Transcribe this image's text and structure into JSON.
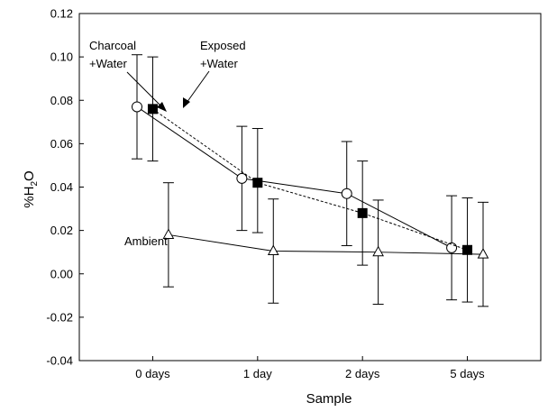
{
  "chart_data": {
    "type": "line",
    "xlabel": "Sample",
    "ylabel": {
      "main": "%H",
      "sub": "2",
      "tail": "O"
    },
    "categories": [
      "0 days",
      "1 day",
      "2 days",
      "5 days"
    ],
    "ylim": [
      -0.04,
      0.12
    ],
    "yticks": [
      -0.04,
      -0.02,
      0.0,
      0.02,
      0.04,
      0.06,
      0.08,
      0.1,
      0.12
    ],
    "ytick_labels": [
      "-0.04",
      "-0.02",
      "0.00",
      "0.02",
      "0.04",
      "0.06",
      "0.08",
      "0.10",
      "0.12"
    ],
    "grid": false,
    "series": [
      {
        "label_lines": [
          "Charcoal",
          "+Water"
        ],
        "marker": "open-circle",
        "line": "solid",
        "x_offset": -0.15,
        "values": [
          0.077,
          0.044,
          0.037,
          0.012
        ],
        "err_low": [
          0.053,
          0.02,
          0.013,
          -0.012
        ],
        "err_high": [
          0.101,
          0.068,
          0.061,
          0.036
        ]
      },
      {
        "label_lines": [
          "Exposed",
          "+Water"
        ],
        "marker": "filled-square",
        "line": "dashed",
        "x_offset": 0.0,
        "values": [
          0.076,
          0.042,
          0.028,
          0.011
        ],
        "err_low": [
          0.052,
          0.019,
          0.004,
          -0.013
        ],
        "err_high": [
          0.1,
          0.067,
          0.052,
          0.035
        ]
      },
      {
        "label_lines": [
          "Ambient"
        ],
        "marker": "open-triangle",
        "line": "solid",
        "x_offset": 0.15,
        "values": [
          0.018,
          0.0105,
          0.01,
          0.009
        ],
        "err_low": [
          -0.006,
          -0.0135,
          -0.014,
          -0.015
        ],
        "err_high": [
          0.042,
          0.0345,
          0.034,
          0.033
        ]
      }
    ]
  }
}
